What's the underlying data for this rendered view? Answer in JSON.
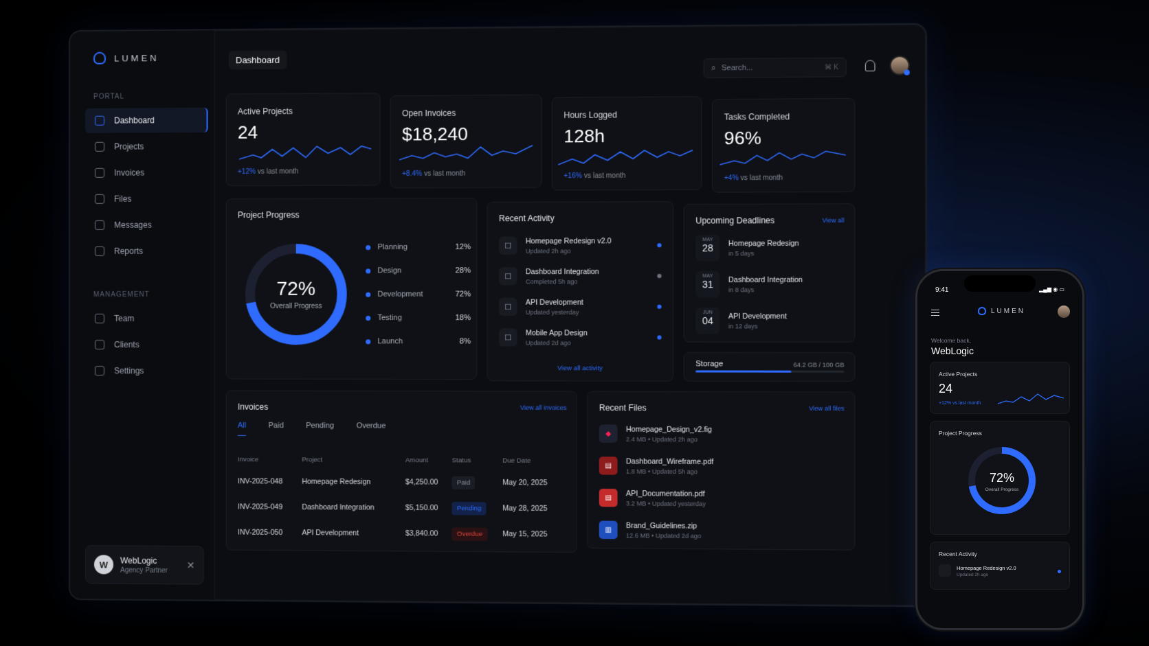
{
  "app": {
    "brand": "LUMEN",
    "page_title": "Dashboard"
  },
  "search": {
    "placeholder": "Search...",
    "shortcut": "⌘ K"
  },
  "sidebar": {
    "portal_label": "PORTAL",
    "management_label": "MANAGEMENT",
    "portal_items": [
      {
        "label": "Dashboard",
        "icon": "home-icon",
        "active": true
      },
      {
        "label": "Projects",
        "icon": "projects-icon"
      },
      {
        "label": "Invoices",
        "icon": "invoice-icon"
      },
      {
        "label": "Files",
        "icon": "file-icon"
      },
      {
        "label": "Messages",
        "icon": "message-icon"
      },
      {
        "label": "Reports",
        "icon": "chart-icon"
      }
    ],
    "management_items": [
      {
        "label": "Team",
        "icon": "team-icon"
      },
      {
        "label": "Clients",
        "icon": "clients-icon"
      },
      {
        "label": "Settings",
        "icon": "gear-icon"
      }
    ],
    "user": {
      "initial": "W",
      "name": "WebLogic",
      "role": "Agency Partner"
    }
  },
  "stats": [
    {
      "label": "Active Projects",
      "value": "24",
      "change": "+12%",
      "suffix": "vs last month"
    },
    {
      "label": "Open Invoices",
      "value": "$18,240",
      "change": "+8.4%",
      "suffix": "vs last month"
    },
    {
      "label": "Hours Logged",
      "value": "128h",
      "change": "+16%",
      "suffix": "vs last month"
    },
    {
      "label": "Tasks Completed",
      "value": "96%",
      "change": "+4%",
      "suffix": "vs last month"
    }
  ],
  "progress": {
    "title": "Project Progress",
    "percent": 72,
    "percent_label": "72%",
    "caption": "Overall Progress",
    "phases": [
      {
        "name": "Planning",
        "pct": "12%"
      },
      {
        "name": "Design",
        "pct": "28%"
      },
      {
        "name": "Development",
        "pct": "72%"
      },
      {
        "name": "Testing",
        "pct": "18%"
      },
      {
        "name": "Launch",
        "pct": "8%"
      }
    ]
  },
  "activity": {
    "title": "Recent Activity",
    "link": "View all activity",
    "items": [
      {
        "title": "Homepage Redesign v2.0",
        "sub": "Updated 2h ago",
        "dot": "#2f6bff"
      },
      {
        "title": "Dashboard Integration",
        "sub": "Completed 5h ago",
        "dot": "#6f7482"
      },
      {
        "title": "API Development",
        "sub": "Updated yesterday",
        "dot": "#2f6bff"
      },
      {
        "title": "Mobile App Design",
        "sub": "Updated 2d ago",
        "dot": "#2f6bff"
      }
    ]
  },
  "deadlines": {
    "title": "Upcoming Deadlines",
    "link": "View all",
    "items": [
      {
        "month": "MAY",
        "day": "28",
        "title": "Homepage Redesign",
        "sub": "in 5 days"
      },
      {
        "month": "MAY",
        "day": "31",
        "title": "Dashboard Integration",
        "sub": "in 8 days"
      },
      {
        "month": "JUN",
        "day": "04",
        "title": "API Development",
        "sub": "in 12 days"
      }
    ]
  },
  "storage": {
    "title": "Storage",
    "value": "64.2 GB / 100 GB",
    "used_fraction": 0.642
  },
  "invoices": {
    "title": "Invoices",
    "link": "View all invoices",
    "tabs": [
      "All",
      "Paid",
      "Pending",
      "Overdue"
    ],
    "columns": [
      "Invoice",
      "Project",
      "Amount",
      "Status",
      "Due Date"
    ],
    "rows": [
      {
        "id": "INV-2025-048",
        "project": "Homepage Redesign",
        "amount": "$4,250.00",
        "status": "Paid",
        "due": "May 20, 2025"
      },
      {
        "id": "INV-2025-049",
        "project": "Dashboard Integration",
        "amount": "$5,150.00",
        "status": "Pending",
        "due": "May 28, 2025"
      },
      {
        "id": "INV-2025-050",
        "project": "API Development",
        "amount": "$3,840.00",
        "status": "Overdue",
        "due": "May 15, 2025"
      }
    ]
  },
  "files": {
    "title": "Recent Files",
    "link": "View all files",
    "items": [
      {
        "name": "Homepage_Design_v2.fig",
        "meta": "2.4 MB • Updated 2h ago",
        "icon": "figma-icon",
        "color": "#1e2230"
      },
      {
        "name": "Dashboard_Wireframe.pdf",
        "meta": "1.8 MB • Updated 5h ago",
        "icon": "pdf-icon",
        "color": "#8e1c1c"
      },
      {
        "name": "API_Documentation.pdf",
        "meta": "3.2 MB • Updated yesterday",
        "icon": "pdf-icon",
        "color": "#c42b2b"
      },
      {
        "name": "Brand_Guidelines.zip",
        "meta": "12.6 MB • Updated 2d ago",
        "icon": "zip-icon",
        "color": "#1f4fbf"
      }
    ]
  },
  "phone": {
    "time": "9:41",
    "welcome": "Welcome back,",
    "user": "WebLogic",
    "stat_label": "Active Projects",
    "stat_value": "24",
    "stat_change": "+12% vs last month",
    "progress_title": "Project Progress",
    "progress_value": "72%",
    "progress_caption": "Overall Progress",
    "activity_title": "Recent Activity",
    "activity_item": "Homepage Redesign v2.0",
    "activity_sub": "Updated 2h ago"
  },
  "colors": {
    "accent": "#2f6bff",
    "paid": "#8a8f9a",
    "pending": "#2f6bff",
    "overdue": "#e0433a"
  }
}
